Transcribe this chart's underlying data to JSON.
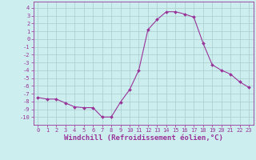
{
  "x": [
    0,
    1,
    2,
    3,
    4,
    5,
    6,
    7,
    8,
    9,
    10,
    11,
    12,
    13,
    14,
    15,
    16,
    17,
    18,
    19,
    20,
    21,
    22,
    23
  ],
  "y": [
    -7.5,
    -7.7,
    -7.7,
    -8.2,
    -8.7,
    -8.8,
    -8.8,
    -10.0,
    -10.0,
    -8.1,
    -6.5,
    -4.0,
    1.2,
    2.5,
    3.5,
    3.5,
    3.2,
    2.8,
    -0.5,
    -3.3,
    -4.0,
    -4.5,
    -5.5,
    -6.2
  ],
  "line_color": "#993399",
  "marker": "D",
  "marker_size": 2,
  "bg_color": "#cceeee",
  "grid_color": "#aacccc",
  "xlabel": "Windchill (Refroidissement éolien,°C)",
  "xlabel_fontsize": 6.5,
  "ytick_values": [
    4,
    3,
    2,
    1,
    0,
    -1,
    -2,
    -3,
    -4,
    -5,
    -6,
    -7,
    -8,
    -9,
    -10
  ],
  "ytick_labels": [
    "4",
    "3",
    "2",
    "1",
    "0",
    "-1",
    "-2",
    "-3",
    "-4",
    "-5",
    "-6",
    "-7",
    "-8",
    "-9",
    "-10"
  ],
  "ylim": [
    -11.0,
    4.8
  ],
  "xlim": [
    -0.5,
    23.5
  ],
  "xtick_labels": [
    "0",
    "1",
    "2",
    "3",
    "4",
    "5",
    "6",
    "7",
    "8",
    "9",
    "10",
    "11",
    "12",
    "13",
    "14",
    "15",
    "16",
    "17",
    "18",
    "19",
    "20",
    "21",
    "22",
    "23"
  ],
  "tick_color": "#993399",
  "tick_fontsize": 5.0
}
